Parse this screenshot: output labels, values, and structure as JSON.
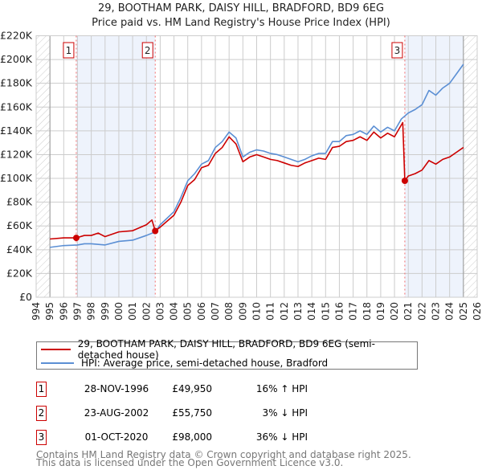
{
  "chart_data": {
    "type": "line",
    "title": "29, BOOTHAM PARK, DAISY HILL, BRADFORD, BD9 6EG",
    "subtitle": "Price paid vs. HM Land Registry's House Price Index (HPI)",
    "xlim": [
      1994,
      2026
    ],
    "ylim": [
      0,
      220000
    ],
    "x_ticks": [
      "1994",
      "1995",
      "1996",
      "1997",
      "1998",
      "1999",
      "2000",
      "2001",
      "2002",
      "2003",
      "2004",
      "2005",
      "2006",
      "2007",
      "2008",
      "2009",
      "2010",
      "2011",
      "2012",
      "2013",
      "2014",
      "2015",
      "2016",
      "2017",
      "2018",
      "2019",
      "2020",
      "2021",
      "2022",
      "2023",
      "2024",
      "2025",
      "2026"
    ],
    "y_ticks": [
      {
        "value": 0,
        "label": "£0"
      },
      {
        "value": 20000,
        "label": "£20K"
      },
      {
        "value": 40000,
        "label": "£40K"
      },
      {
        "value": 60000,
        "label": "£60K"
      },
      {
        "value": 80000,
        "label": "£80K"
      },
      {
        "value": 100000,
        "label": "£100K"
      },
      {
        "value": 120000,
        "label": "£120K"
      },
      {
        "value": 140000,
        "label": "£140K"
      },
      {
        "value": 160000,
        "label": "£160K"
      },
      {
        "value": 180000,
        "label": "£180K"
      },
      {
        "value": 200000,
        "label": "£200K"
      },
      {
        "value": 220000,
        "label": "£220K"
      }
    ],
    "grid": true,
    "shaded_ranges": [
      [
        1996.91,
        2002.64
      ],
      [
        2020.75,
        2025.0
      ]
    ],
    "hatched_ranges": [
      [
        1994,
        1995
      ],
      [
        2025.0,
        2026
      ]
    ],
    "series": [
      {
        "name": "29, BOOTHAM PARK, DAISY HILL, BRADFORD, BD9 6EG (semi-detached house)",
        "color": "#cc0000",
        "x": [
          1995,
          1996,
          1996.91,
          1997.5,
          1998,
          1998.5,
          1999,
          2000,
          2001,
          2002,
          2002.4,
          2002.64,
          2003,
          2004,
          2004.5,
          2005,
          2005.5,
          2006,
          2006.5,
          2007,
          2007.5,
          2008,
          2008.5,
          2009,
          2009.5,
          2010,
          2010.5,
          2011,
          2011.5,
          2012,
          2012.5,
          2013,
          2013.5,
          2014,
          2014.5,
          2015,
          2015.5,
          2016,
          2016.5,
          2017,
          2017.5,
          2018,
          2018.5,
          2019,
          2019.5,
          2020,
          2020.6,
          2020.75,
          2021,
          2021.5,
          2022,
          2022.5,
          2023,
          2023.5,
          2024,
          2024.5,
          2025
        ],
        "y": [
          49,
          50,
          49.95,
          52,
          52,
          54,
          51,
          55,
          56,
          61,
          65,
          55.75,
          59,
          69,
          80,
          94,
          99,
          109,
          111,
          121,
          126,
          135,
          129,
          114,
          118,
          120,
          118,
          116,
          115,
          113,
          111,
          110,
          113,
          115,
          117,
          116,
          126,
          127,
          131,
          132,
          135,
          132,
          139,
          134,
          138,
          135,
          147,
          98,
          102,
          104,
          107,
          115,
          112,
          116,
          118,
          122,
          126
        ]
      },
      {
        "name": "HPI: Average price, semi-detached house, Bradford",
        "color": "#5b8fd4",
        "x": [
          1995,
          1996,
          1997,
          1997.5,
          1998,
          1999,
          2000,
          2001,
          2002,
          2002.64,
          2003,
          2004,
          2004.5,
          2005,
          2005.5,
          2006,
          2006.5,
          2007,
          2007.5,
          2008,
          2008.5,
          2009,
          2009.5,
          2010,
          2010.5,
          2011,
          2011.5,
          2012,
          2012.5,
          2013,
          2013.5,
          2014,
          2014.5,
          2015,
          2015.5,
          2016,
          2016.5,
          2017,
          2017.5,
          2018,
          2018.5,
          2019,
          2019.5,
          2020,
          2020.5,
          2021,
          2021.5,
          2022,
          2022.5,
          2023,
          2023.5,
          2024,
          2024.5,
          2025
        ],
        "y": [
          42,
          43.5,
          44,
          45,
          45,
          44,
          47,
          48,
          52,
          55,
          61,
          72,
          84,
          98,
          104,
          112,
          115,
          126,
          131,
          139,
          134,
          118,
          122,
          124,
          123,
          121,
          120,
          118,
          116,
          114,
          116,
          119,
          121,
          121,
          131,
          131,
          136,
          137,
          140,
          137,
          144,
          139,
          143,
          140,
          150,
          155,
          158,
          162,
          174,
          170,
          176,
          180,
          188,
          196
        ]
      }
    ],
    "y_unit_multiplier": 1000,
    "sales": [
      {
        "id": "1",
        "x": 1996.91,
        "value": 49.95
      },
      {
        "id": "2",
        "x": 2002.64,
        "value": 55.75
      },
      {
        "id": "3",
        "x": 2020.75,
        "value": 98.0
      }
    ]
  },
  "legend": {
    "property": "29, BOOTHAM PARK, DAISY HILL, BRADFORD, BD9 6EG (semi-detached house)",
    "hpi": "HPI: Average price, semi-detached house, Bradford"
  },
  "transactions": [
    {
      "id": "1",
      "date": "28-NOV-1996",
      "price": "£49,950",
      "hpi": "16% ↑ HPI"
    },
    {
      "id": "2",
      "date": "23-AUG-2002",
      "price": "£55,750",
      "hpi": "3% ↓ HPI"
    },
    {
      "id": "3",
      "date": "01-OCT-2020",
      "price": "£98,000",
      "hpi": "36% ↓ HPI"
    }
  ],
  "footer": {
    "line1": "Contains HM Land Registry data © Crown copyright and database right 2025.",
    "line2": "This data is licensed under the Open Government Licence v3.0."
  }
}
